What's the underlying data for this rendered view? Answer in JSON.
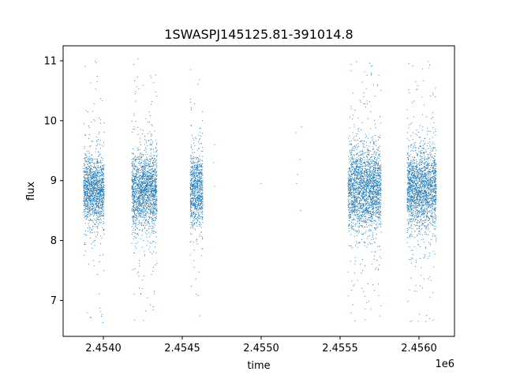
{
  "chart_data": {
    "type": "scatter",
    "title": "1SWASPJ145125.81-391014.8",
    "xlabel": "time",
    "ylabel": "flux",
    "x_offset_label": "1e6",
    "xlim": [
      2453740,
      2456220
    ],
    "ylim": [
      6.4,
      11.25
    ],
    "x_ticks": [
      2453995,
      2454495,
      2454995,
      2455495,
      2455995
    ],
    "x_tick_labels": [
      "2.4540",
      "2.4545",
      "2.4550",
      "2.4555",
      "2.4560"
    ],
    "y_ticks": [
      7,
      8,
      9,
      10,
      11
    ],
    "y_tick_labels": [
      "7",
      "8",
      "9",
      "10",
      "11"
    ],
    "grid": false,
    "marker_color": "#1f77b4",
    "clusters": [
      {
        "x_range": [
          2453870,
          2454000
        ],
        "center": 8.85,
        "spread": 0.28,
        "min": 6.6,
        "max": 11.0
      },
      {
        "x_range": [
          2454175,
          2454335
        ],
        "center": 8.85,
        "spread": 0.32,
        "min": 6.65,
        "max": 11.05
      },
      {
        "x_range": [
          2454545,
          2454625
        ],
        "center": 8.85,
        "spread": 0.3,
        "min": 6.7,
        "max": 11.0
      },
      {
        "x_range": [
          2455545,
          2455755
        ],
        "center": 8.85,
        "spread": 0.35,
        "min": 6.65,
        "max": 11.05
      },
      {
        "x_range": [
          2455920,
          2456105
        ],
        "center": 8.85,
        "spread": 0.33,
        "min": 6.6,
        "max": 11.0
      }
    ],
    "isolated_points": [
      {
        "x": 2454700,
        "y": 9.6
      },
      {
        "x": 2454695,
        "y": 9.3
      },
      {
        "x": 2454700,
        "y": 8.9
      },
      {
        "x": 2454995,
        "y": 8.95
      },
      {
        "x": 2455215,
        "y": 9.8
      },
      {
        "x": 2455225,
        "y": 9.1
      },
      {
        "x": 2455220,
        "y": 8.95
      },
      {
        "x": 2455245,
        "y": 8.5
      },
      {
        "x": 2455240,
        "y": 9.35
      },
      {
        "x": 2455250,
        "y": 9.9
      }
    ]
  }
}
